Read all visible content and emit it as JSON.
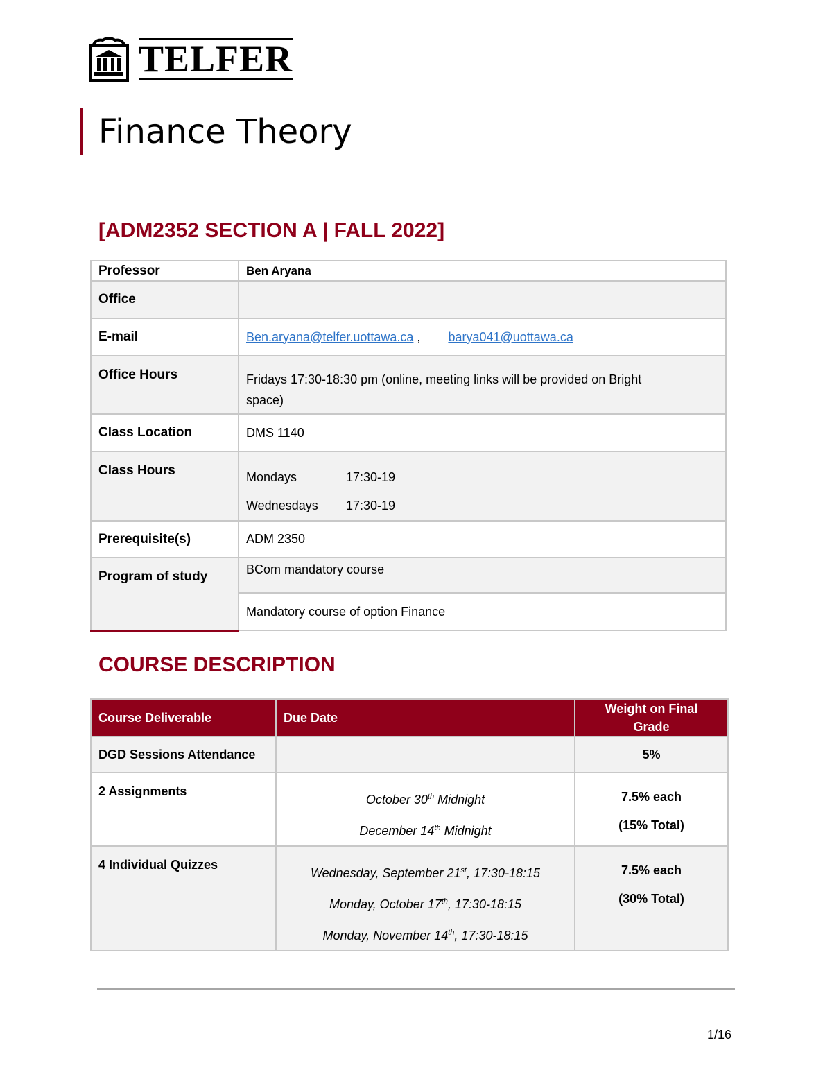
{
  "logo": {
    "text": "TELFER"
  },
  "title": "Finance Theory",
  "course_heading": "[ADM2352 SECTION A | FALL 2022]",
  "info": {
    "professor": {
      "label": "Professor",
      "value": "Ben Aryana"
    },
    "office": {
      "label": "Office",
      "value": ""
    },
    "email": {
      "label": "E-mail",
      "link1": "Ben.aryana@telfer.uottawa.ca",
      "sep": " ,",
      "link2": "barya041@uottawa.ca"
    },
    "office_hours": {
      "label": "Office Hours",
      "value": "Fridays 17:30-18:30 pm (online, meeting links will be provided on Bright space)"
    },
    "class_location": {
      "label": "Class Location",
      "value": "DMS 1140"
    },
    "class_hours": {
      "label": "Class Hours",
      "rows": [
        {
          "day": "Mondays",
          "time": "17:30-19"
        },
        {
          "day": "Wednesdays",
          "time": "17:30-19"
        }
      ]
    },
    "prerequisites": {
      "label": "Prerequisite(s)",
      "value": "ADM 2350"
    },
    "program": {
      "label": "Program of study",
      "values": [
        "BCom mandatory course",
        "Mandatory course of option Finance"
      ]
    }
  },
  "description_heading": "COURSE DESCRIPTION",
  "deliverables": {
    "headers": [
      "Course Deliverable",
      "Due Date",
      "Weight on Final Grade"
    ],
    "rows": [
      {
        "name": "DGD Sessions Attendance",
        "dates": [],
        "weight": [
          "5%"
        ]
      },
      {
        "name": "2 Assignments",
        "dates": [
          {
            "pre": "October 30",
            "sup": "th",
            "post": " Midnight"
          },
          {
            "pre": "December 14",
            "sup": "th",
            "post": " Midnight"
          }
        ],
        "weight": [
          "7.5% each",
          "(15% Total)"
        ]
      },
      {
        "name": "4 Individual Quizzes",
        "dates": [
          {
            "pre": "Wednesday, September 21",
            "sup": "st",
            "post": ", 17:30-18:15"
          },
          {
            "pre": "Monday, October 17",
            "sup": "th",
            "post": ", 17:30-18:15"
          },
          {
            "pre": "Monday, November 14",
            "sup": "th",
            "post": ", 17:30-18:15"
          }
        ],
        "weight": [
          "7.5% each",
          "(30% Total)"
        ]
      }
    ]
  },
  "page_number": "1/16",
  "colors": {
    "accent": "#8f001a",
    "link": "#2e74c8"
  }
}
